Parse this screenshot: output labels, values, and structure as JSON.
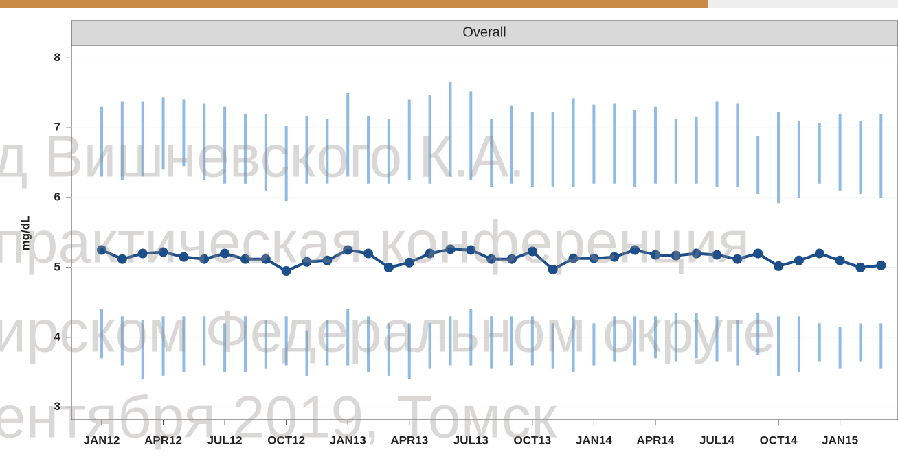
{
  "chart_data": {
    "type": "line",
    "panel_title": "Overall",
    "y_label": "mg/dL",
    "categories": [
      "JAN12",
      null,
      null,
      "APR12",
      null,
      null,
      "JUL12",
      null,
      null,
      "OCT12",
      null,
      null,
      "JAN13",
      null,
      null,
      "APR13",
      null,
      null,
      "JUL13",
      null,
      null,
      "OCT13",
      null,
      null,
      "JAN14",
      null,
      null,
      "APR14",
      null,
      null,
      "JUL14",
      null,
      null,
      "OCT14",
      null,
      null,
      "JAN15",
      null,
      null
    ],
    "values": [
      5.25,
      5.12,
      5.2,
      5.22,
      5.15,
      5.12,
      5.2,
      5.12,
      5.12,
      4.95,
      5.08,
      5.1,
      5.25,
      5.2,
      5.0,
      5.07,
      5.2,
      5.26,
      5.25,
      5.12,
      5.12,
      5.23,
      4.97,
      5.13,
      5.13,
      5.15,
      5.25,
      5.18,
      5.17,
      5.2,
      5.18,
      5.12,
      5.2,
      5.02,
      5.1,
      5.2,
      5.1,
      5.0,
      5.03
    ],
    "color": "#1c4f8a",
    "upper_low": [
      6.3,
      6.25,
      6.3,
      6.4,
      6.45,
      6.25,
      6.2,
      6.2,
      6.1,
      5.95,
      6.2,
      6.2,
      6.3,
      6.2,
      6.2,
      6.25,
      6.2,
      6.3,
      6.25,
      6.15,
      6.2,
      6.15,
      6.15,
      6.15,
      6.2,
      6.2,
      6.15,
      6.2,
      6.2,
      6.2,
      6.15,
      6.15,
      6.05,
      5.92,
      6.0,
      6.2,
      6.1,
      6.05,
      6.0
    ],
    "upper_high": [
      7.3,
      7.38,
      7.38,
      7.43,
      7.4,
      7.35,
      7.3,
      7.2,
      7.2,
      7.02,
      7.17,
      7.12,
      7.5,
      7.17,
      7.12,
      7.4,
      7.47,
      7.65,
      7.52,
      7.13,
      7.32,
      7.22,
      7.22,
      7.42,
      7.33,
      7.35,
      7.25,
      7.3,
      7.12,
      7.15,
      7.38,
      7.35,
      6.88,
      7.22,
      7.1,
      7.07,
      7.2,
      7.1,
      7.2
    ],
    "lower_low": [
      3.7,
      3.6,
      3.4,
      3.45,
      3.5,
      3.6,
      3.5,
      3.5,
      3.55,
      3.6,
      3.45,
      3.6,
      3.6,
      3.5,
      3.45,
      3.4,
      3.55,
      3.6,
      3.6,
      3.55,
      3.6,
      3.6,
      3.55,
      3.5,
      3.6,
      3.65,
      3.6,
      3.7,
      3.65,
      3.7,
      3.65,
      3.6,
      3.75,
      3.45,
      3.5,
      3.65,
      3.55,
      3.65,
      3.55
    ],
    "lower_high": [
      4.4,
      4.3,
      4.25,
      4.3,
      4.3,
      4.3,
      4.2,
      4.3,
      4.25,
      4.3,
      4.1,
      4.25,
      4.4,
      4.3,
      4.2,
      4.2,
      4.2,
      4.3,
      4.4,
      4.3,
      4.3,
      4.3,
      4.2,
      4.3,
      4.2,
      4.3,
      4.3,
      4.3,
      4.35,
      4.35,
      4.3,
      4.25,
      4.35,
      4.3,
      4.3,
      4.2,
      4.15,
      4.2,
      4.2
    ],
    "band_color": "#8fbbe4",
    "ylim": [
      2.82,
      8.18
    ],
    "yticks": [
      3,
      4,
      5,
      6,
      7,
      8
    ],
    "grid": true,
    "annotations": [
      "д Вишневского К.А.",
      "практическая конференция",
      "ирском Федеральном округе",
      "ентября 2019, Томск"
    ]
  }
}
